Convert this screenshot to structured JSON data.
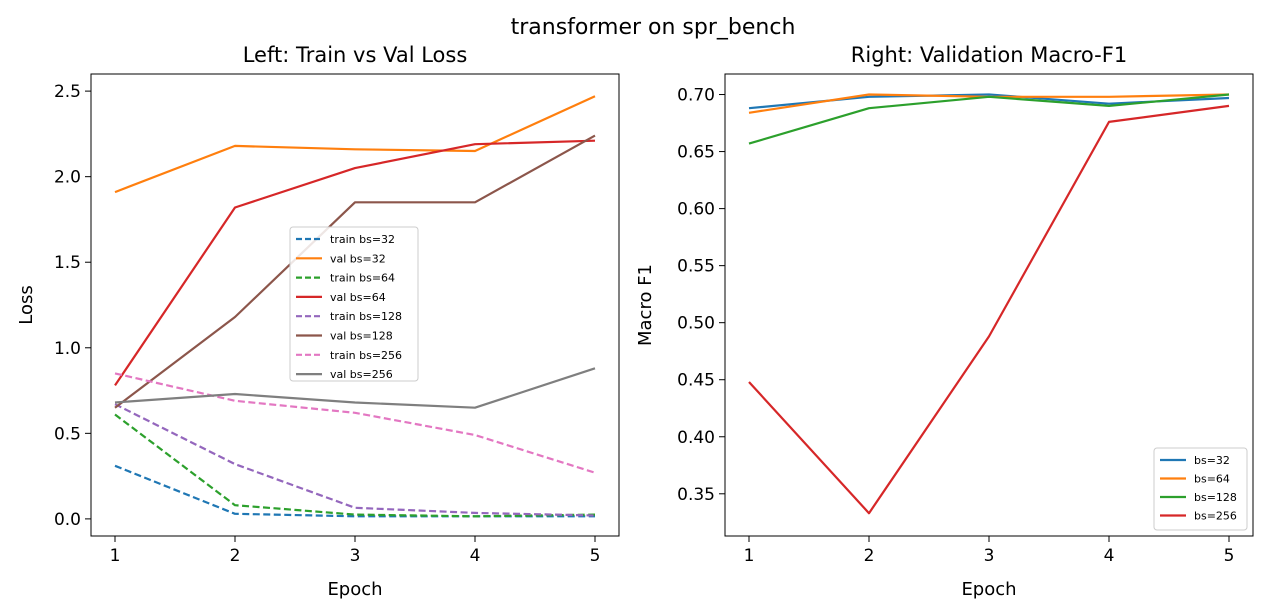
{
  "figure": {
    "suptitle": "transformer on spr_bench"
  },
  "colors": {
    "blue": "#1f77b4",
    "orange": "#ff7f0e",
    "green": "#2ca02c",
    "red": "#d62728",
    "purple": "#9467bd",
    "brown": "#8c564b",
    "pink": "#e377c2",
    "gray": "#7f7f7f"
  },
  "chart_data": [
    {
      "type": "line",
      "title": "Left: Train vs Val Loss",
      "xlabel": "Epoch",
      "ylabel": "Loss",
      "x": [
        1,
        2,
        3,
        4,
        5
      ],
      "xlim": [
        0.8,
        5.2
      ],
      "ylim": [
        -0.1,
        2.6
      ],
      "xticks": [
        1,
        2,
        3,
        4,
        5
      ],
      "yticks": [
        0.0,
        0.5,
        1.0,
        1.5,
        2.0,
        2.5
      ],
      "ytick_labels": [
        "0.0",
        "0.5",
        "1.0",
        "1.5",
        "2.0",
        "2.5"
      ],
      "grid": false,
      "legend_position": "center-right",
      "series": [
        {
          "name": "train bs=32",
          "style": "dashed",
          "color": "#1f77b4",
          "values": [
            0.31,
            0.03,
            0.015,
            0.015,
            0.015
          ]
        },
        {
          "name": "val bs=32",
          "style": "solid",
          "color": "#ff7f0e",
          "values": [
            1.91,
            2.18,
            2.16,
            2.15,
            2.47
          ]
        },
        {
          "name": "train bs=64",
          "style": "dashed",
          "color": "#2ca02c",
          "values": [
            0.61,
            0.08,
            0.025,
            0.015,
            0.025
          ]
        },
        {
          "name": "val bs=64",
          "style": "solid",
          "color": "#d62728",
          "values": [
            0.78,
            1.82,
            2.05,
            2.19,
            2.21
          ]
        },
        {
          "name": "train bs=128",
          "style": "dashed",
          "color": "#9467bd",
          "values": [
            0.67,
            0.32,
            0.065,
            0.035,
            0.02
          ]
        },
        {
          "name": "val bs=128",
          "style": "solid",
          "color": "#8c564b",
          "values": [
            0.65,
            1.18,
            1.85,
            1.85,
            2.24
          ]
        },
        {
          "name": "train bs=256",
          "style": "dashed",
          "color": "#e377c2",
          "values": [
            0.85,
            0.69,
            0.62,
            0.49,
            0.27
          ]
        },
        {
          "name": "val bs=256",
          "style": "solid",
          "color": "#7f7f7f",
          "values": [
            0.68,
            0.73,
            0.68,
            0.65,
            0.88
          ]
        }
      ]
    },
    {
      "type": "line",
      "title": "Right: Validation Macro-F1",
      "xlabel": "Epoch",
      "ylabel": "Macro F1",
      "x": [
        1,
        2,
        3,
        4,
        5
      ],
      "xlim": [
        0.8,
        5.2
      ],
      "ylim": [
        0.313,
        0.718
      ],
      "xticks": [
        1,
        2,
        3,
        4,
        5
      ],
      "yticks": [
        0.35,
        0.4,
        0.45,
        0.5,
        0.55,
        0.6,
        0.65,
        0.7
      ],
      "ytick_labels": [
        "0.35",
        "0.40",
        "0.45",
        "0.50",
        "0.55",
        "0.60",
        "0.65",
        "0.70"
      ],
      "grid": false,
      "legend_position": "lower-right",
      "series": [
        {
          "name": "bs=32",
          "style": "solid",
          "color": "#1f77b4",
          "values": [
            0.688,
            0.698,
            0.7,
            0.692,
            0.697
          ]
        },
        {
          "name": "bs=64",
          "style": "solid",
          "color": "#ff7f0e",
          "values": [
            0.684,
            0.7,
            0.698,
            0.698,
            0.7
          ]
        },
        {
          "name": "bs=128",
          "style": "solid",
          "color": "#2ca02c",
          "values": [
            0.657,
            0.688,
            0.698,
            0.69,
            0.7
          ]
        },
        {
          "name": "bs=256",
          "style": "solid",
          "color": "#d62728",
          "values": [
            0.448,
            0.333,
            0.488,
            0.676,
            0.69
          ]
        }
      ]
    }
  ]
}
